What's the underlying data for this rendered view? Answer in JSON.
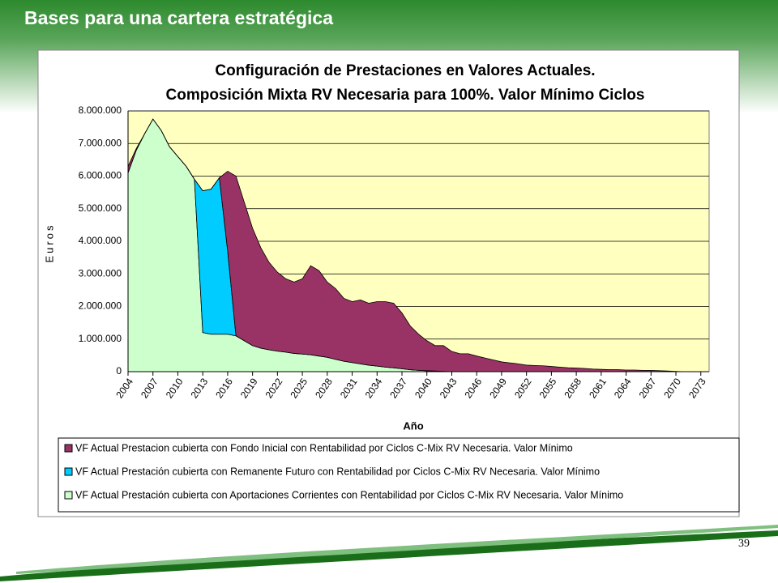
{
  "header": {
    "title": "Bases para una cartera estratégica",
    "page_number": "39"
  },
  "chart_data": {
    "type": "stacked-area",
    "title": [
      "Configuración de Prestaciones en Valores Actuales.",
      "Composición Mixta RV Necesaria para 100%. Valor Mínimo Ciclos"
    ],
    "x_label": "Año",
    "y_label": "Euros",
    "x": [
      2004,
      2005,
      2006,
      2007,
      2008,
      2009,
      2010,
      2011,
      2012,
      2013,
      2014,
      2015,
      2016,
      2017,
      2018,
      2019,
      2020,
      2021,
      2022,
      2023,
      2024,
      2025,
      2026,
      2027,
      2028,
      2029,
      2030,
      2031,
      2032,
      2033,
      2034,
      2035,
      2036,
      2037,
      2038,
      2039,
      2040,
      2041,
      2042,
      2043,
      2044,
      2045,
      2046,
      2047,
      2048,
      2049,
      2050,
      2051,
      2052,
      2053,
      2054,
      2055,
      2056,
      2057,
      2058,
      2059,
      2060,
      2061,
      2062,
      2063,
      2064,
      2065,
      2066,
      2067,
      2068,
      2069,
      2070,
      2071,
      2072,
      2073,
      2074
    ],
    "xlim": [
      2004,
      2074
    ],
    "xticks": [
      2004,
      2007,
      2010,
      2013,
      2016,
      2019,
      2022,
      2025,
      2028,
      2031,
      2034,
      2037,
      2040,
      2043,
      2046,
      2049,
      2052,
      2055,
      2058,
      2061,
      2064,
      2067,
      2070,
      2073
    ],
    "ylim": [
      0,
      8000000
    ],
    "yticks": [
      0,
      {
        "value": 1000000,
        "label": "1.000.000"
      },
      {
        "value": 2000000,
        "label": "2.000.000"
      },
      {
        "value": 3000000,
        "label": "3.000.000"
      },
      {
        "value": 4000000,
        "label": "4.000.000"
      },
      {
        "value": 5000000,
        "label": "5.000.000"
      },
      {
        "value": 6000000,
        "label": "6.000.000"
      },
      {
        "value": 7000000,
        "label": "7.000.000"
      },
      {
        "value": 8000000,
        "label": "8.000.000"
      }
    ],
    "grid": true,
    "series": [
      {
        "name": "VF Actual Prestacion cubierta con Fondo Inicial con Rentabilidad por Ciclos C-Mix RV Necesaria. Valor Mínimo",
        "color": "#993366",
        "values": [
          200000,
          50000,
          0,
          0,
          0,
          0,
          0,
          0,
          0,
          0,
          0,
          0,
          2450000,
          4900000,
          4250000,
          3600000,
          3080000,
          2680000,
          2420000,
          2250000,
          2190000,
          2310000,
          2730000,
          2620000,
          2310000,
          2170000,
          1930000,
          1870000,
          1960000,
          1900000,
          1980000,
          2010000,
          1980000,
          1710000,
          1340000,
          1110000,
          920000,
          780000,
          790000,
          620000,
          550000,
          550000,
          480000,
          420000,
          360000,
          300000,
          270000,
          240000,
          200000,
          190000,
          180000,
          160000,
          140000,
          120000,
          110000,
          100000,
          80000,
          70000,
          60000,
          60000,
          50000,
          50000,
          40000,
          40000,
          30000,
          20000,
          10000,
          0,
          0,
          0,
          0
        ]
      },
      {
        "name": "VF Actual Prestación cubierta con Remanente Futuro con Rentabilidad por Ciclos C-Mix RV Necesaria. Valor Mínimo",
        "color": "#00ccff",
        "values": [
          0,
          0,
          0,
          0,
          0,
          0,
          0,
          0,
          0,
          4350000,
          4450000,
          4800000,
          2550000,
          0,
          0,
          0,
          0,
          0,
          0,
          0,
          0,
          0,
          0,
          0,
          0,
          0,
          0,
          0,
          0,
          0,
          0,
          0,
          0,
          0,
          0,
          0,
          0,
          0,
          0,
          0,
          0,
          0,
          0,
          0,
          0,
          0,
          0,
          0,
          0,
          0,
          0,
          0,
          0,
          0,
          0,
          0,
          0,
          0,
          0,
          0,
          0,
          0,
          0,
          0,
          0,
          0,
          0,
          0,
          0,
          0,
          0
        ]
      },
      {
        "name": "VF Actual Prestación cubierta con Aportaciones Corrientes con Rentabilidad por Ciclos C-Mix RV Necesaria. Valor Mínimo",
        "color": "#ccffcc",
        "values": [
          6100000,
          6800000,
          7300000,
          7750000,
          7400000,
          6900000,
          6600000,
          6300000,
          5900000,
          1200000,
          1150000,
          1150000,
          1150000,
          1100000,
          950000,
          800000,
          720000,
          670000,
          630000,
          600000,
          560000,
          540000,
          520000,
          480000,
          440000,
          380000,
          320000,
          280000,
          240000,
          200000,
          170000,
          140000,
          120000,
          90000,
          60000,
          40000,
          30000,
          20000,
          10000,
          0,
          0,
          0,
          0,
          0,
          0,
          0,
          0,
          0,
          0,
          0,
          0,
          0,
          0,
          0,
          0,
          0,
          0,
          0,
          0,
          0,
          0,
          0,
          0,
          0,
          0,
          0,
          0,
          0,
          0,
          0,
          0
        ]
      }
    ]
  }
}
